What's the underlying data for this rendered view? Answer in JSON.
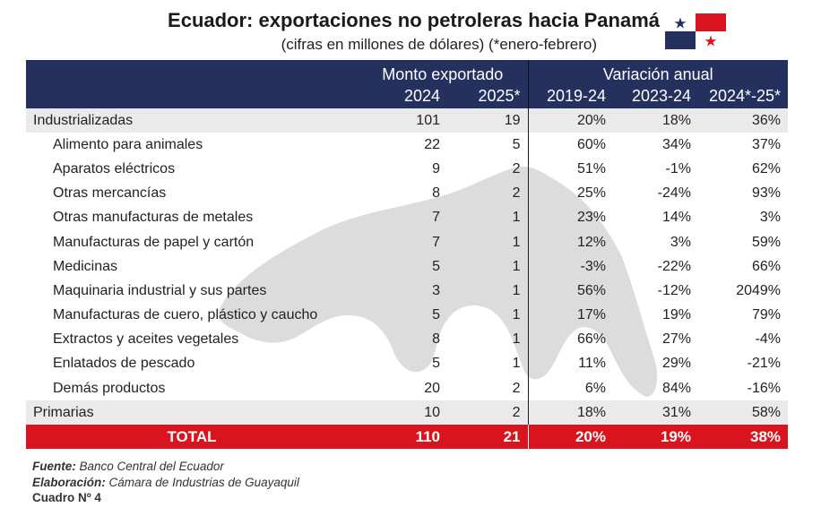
{
  "title": "Ecuador: exportaciones no petroleras hacia Panamá",
  "subtitle": "(cifras en millones de dólares) (*enero-febrero)",
  "header": {
    "group_monto": "Monto exportado",
    "group_variacion": "Variación anual",
    "col_2024": "2024",
    "col_2025": "2025*",
    "col_2019_24": "2019-24",
    "col_2023_24": "2023-24",
    "col_2024_25": "2024*-25*"
  },
  "rows": [
    {
      "name": "Industrializadas",
      "v2024": "101",
      "v2025": "19",
      "p1924": "20%",
      "p2324": "18%",
      "p2425": "36%"
    },
    {
      "name": "Alimento para animales",
      "v2024": "22",
      "v2025": "5",
      "p1924": "60%",
      "p2324": "34%",
      "p2425": "37%"
    },
    {
      "name": "Aparatos eléctricos",
      "v2024": "9",
      "v2025": "2",
      "p1924": "51%",
      "p2324": "-1%",
      "p2425": "62%"
    },
    {
      "name": "Otras mercancías",
      "v2024": "8",
      "v2025": "2",
      "p1924": "25%",
      "p2324": "-24%",
      "p2425": "93%"
    },
    {
      "name": "Otras manufacturas de metales",
      "v2024": "7",
      "v2025": "1",
      "p1924": "23%",
      "p2324": "14%",
      "p2425": "3%"
    },
    {
      "name": "Manufacturas de papel y cartón",
      "v2024": "7",
      "v2025": "1",
      "p1924": "12%",
      "p2324": "3%",
      "p2425": "59%"
    },
    {
      "name": "Medicinas",
      "v2024": "5",
      "v2025": "1",
      "p1924": "-3%",
      "p2324": "-22%",
      "p2425": "66%"
    },
    {
      "name": "Maquinaria industrial y sus partes",
      "v2024": "3",
      "v2025": "1",
      "p1924": "56%",
      "p2324": "-12%",
      "p2425": "2049%"
    },
    {
      "name": "Manufacturas de cuero, plástico y caucho",
      "v2024": "5",
      "v2025": "1",
      "p1924": "17%",
      "p2324": "19%",
      "p2425": "79%"
    },
    {
      "name": "Extractos y aceites vegetales",
      "v2024": "8",
      "v2025": "1",
      "p1924": "66%",
      "p2324": "27%",
      "p2425": "-4%"
    },
    {
      "name": "Enlatados de pescado",
      "v2024": "5",
      "v2025": "1",
      "p1924": "11%",
      "p2324": "29%",
      "p2425": "-21%"
    },
    {
      "name": "Demás productos",
      "v2024": "20",
      "v2025": "2",
      "p1924": "6%",
      "p2324": "84%",
      "p2425": "-16%"
    },
    {
      "name": "Primarias",
      "v2024": "10",
      "v2025": "2",
      "p1924": "18%",
      "p2324": "31%",
      "p2425": "58%"
    }
  ],
  "total": {
    "name": "TOTAL",
    "v2024": "110",
    "v2025": "21",
    "p1924": "20%",
    "p2324": "19%",
    "p2425": "38%"
  },
  "footer": {
    "fuente_label": "Fuente:",
    "fuente": "Banco Central del Ecuador",
    "elaboracion_label": "Elaboración:",
    "elaboracion": "Cámara de Industrias de Guayaquil",
    "cuadro": "Cuadro Nº 4"
  },
  "colors": {
    "header_bg": "#24305e",
    "total_bg": "#d9141f",
    "flag_red": "#d9141f",
    "flag_blue": "#24305e"
  }
}
